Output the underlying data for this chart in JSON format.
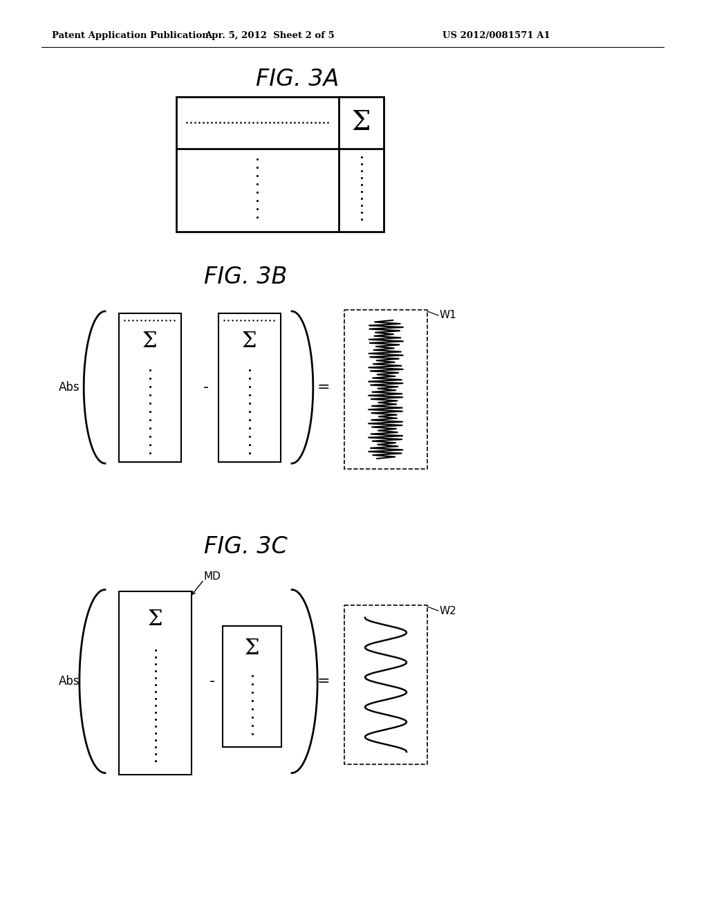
{
  "background_color": "#ffffff",
  "header_left": "Patent Application Publication",
  "header_mid": "Apr. 5, 2012  Sheet 2 of 5",
  "header_right": "US 2012/0081571 A1",
  "fig3a_title": "FIG. 3A",
  "fig3b_title": "FIG. 3B",
  "fig3c_title": "FIG. 3C",
  "label_abs": "Abs",
  "label_minus": "-",
  "label_equals": "=",
  "label_sigma": "Σ",
  "label_w1": "W1",
  "label_w2": "W2",
  "label_mo": "MD"
}
